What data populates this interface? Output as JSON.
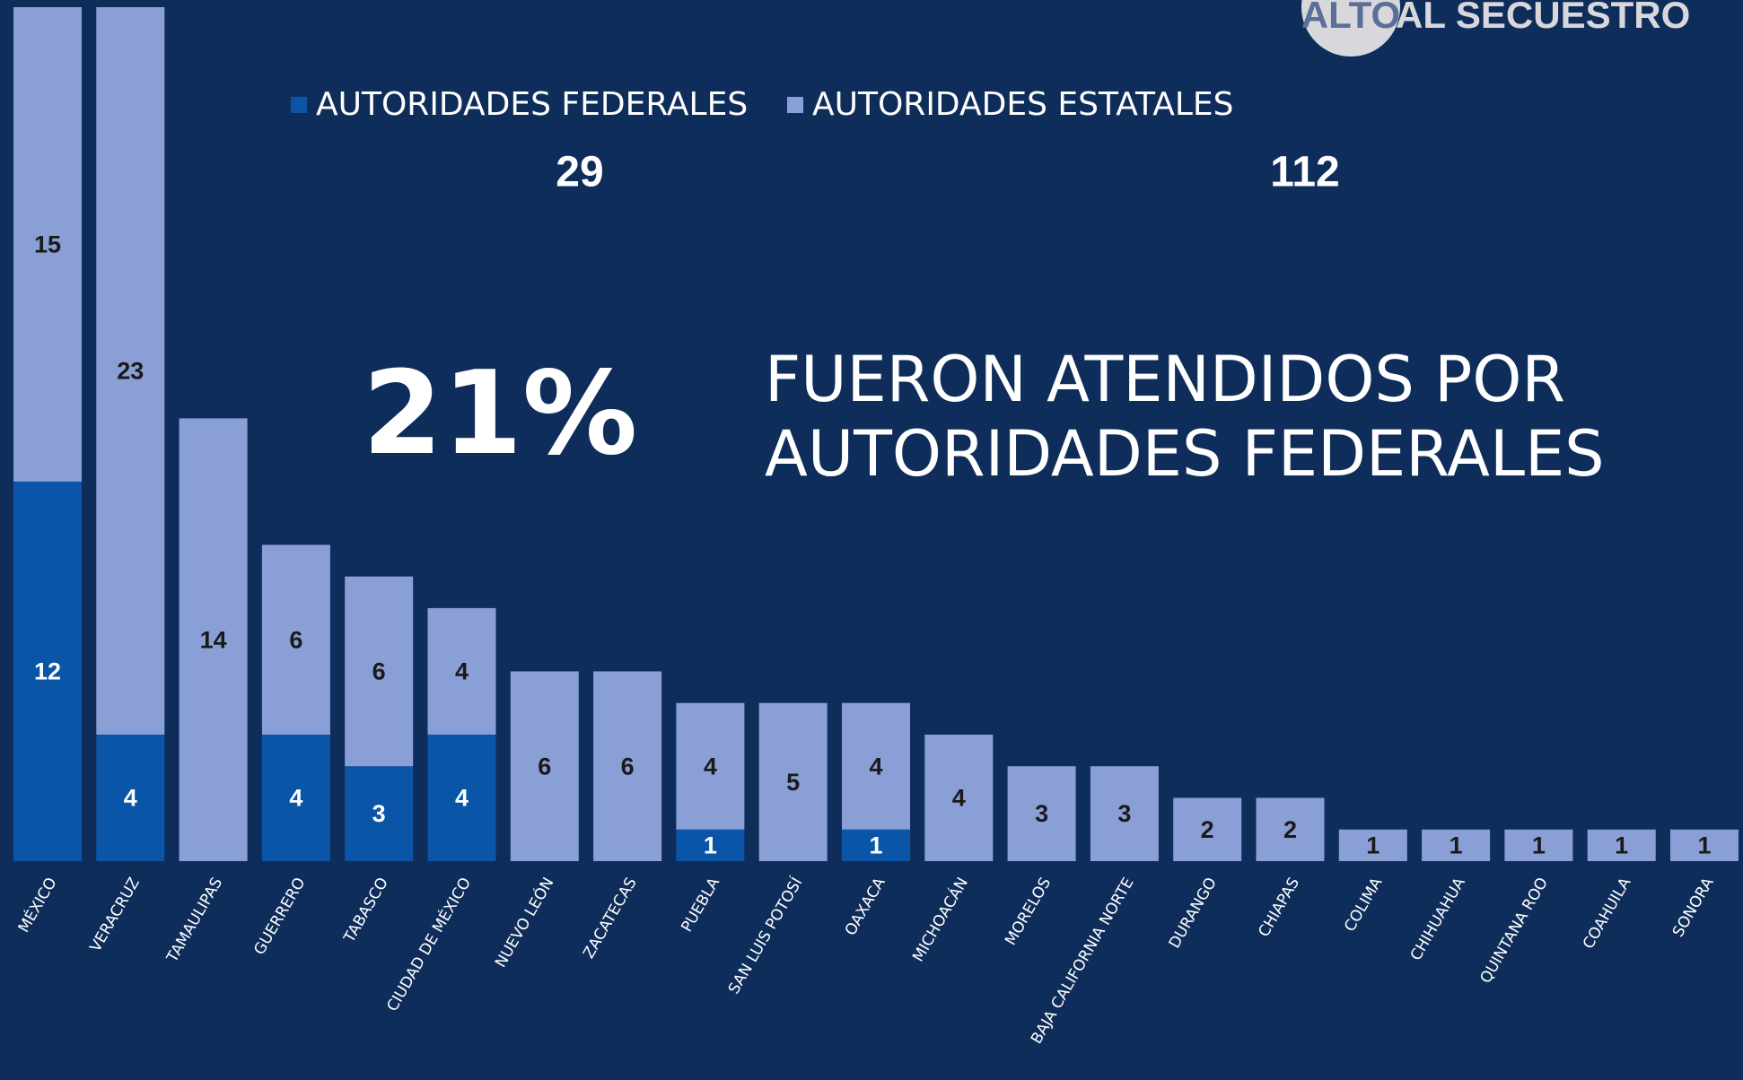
{
  "chart_data": {
    "type": "stacked_bar",
    "logo": [
      "ALTO",
      "AL SECUESTRO"
    ],
    "headline_value": "21%",
    "headline_text": [
      "FUERON ATENDIDOS POR",
      "AUTORIDADES FEDERALES"
    ],
    "categories": [
      "MÉXICO",
      "VERACRUZ",
      "TAMAULIPAS",
      "GUERRERO",
      "TABASCO",
      "CIUDAD DE MÉXICO",
      "NUEVO LEÓN",
      "ZACATECAS",
      "PUEBLA",
      "SAN LUIS POTOSÍ",
      "OAXACA",
      "MICHOACÁN",
      "MORELOS",
      "BAJA CALIFORNIA NORTE",
      "DURANGO",
      "CHIAPAS",
      "COLIMA",
      "CHIHUAHUA",
      "QUINTANA ROO",
      "COAHUILA",
      "SONORA"
    ],
    "series": [
      {
        "name": "AUTORIDADES FEDERALES",
        "color": "#0a55a8",
        "total": 29,
        "values": [
          12,
          4,
          null,
          4,
          3,
          4,
          null,
          null,
          1,
          null,
          1,
          null,
          null,
          null,
          null,
          null,
          null,
          null,
          null,
          null,
          null
        ]
      },
      {
        "name": "AUTORIDADES ESTATALES",
        "color": "#8a9fd6",
        "total": 112,
        "values": [
          15,
          23,
          14,
          6,
          6,
          4,
          6,
          6,
          4,
          5,
          4,
          4,
          3,
          3,
          2,
          2,
          1,
          1,
          1,
          1,
          1
        ]
      }
    ]
  }
}
